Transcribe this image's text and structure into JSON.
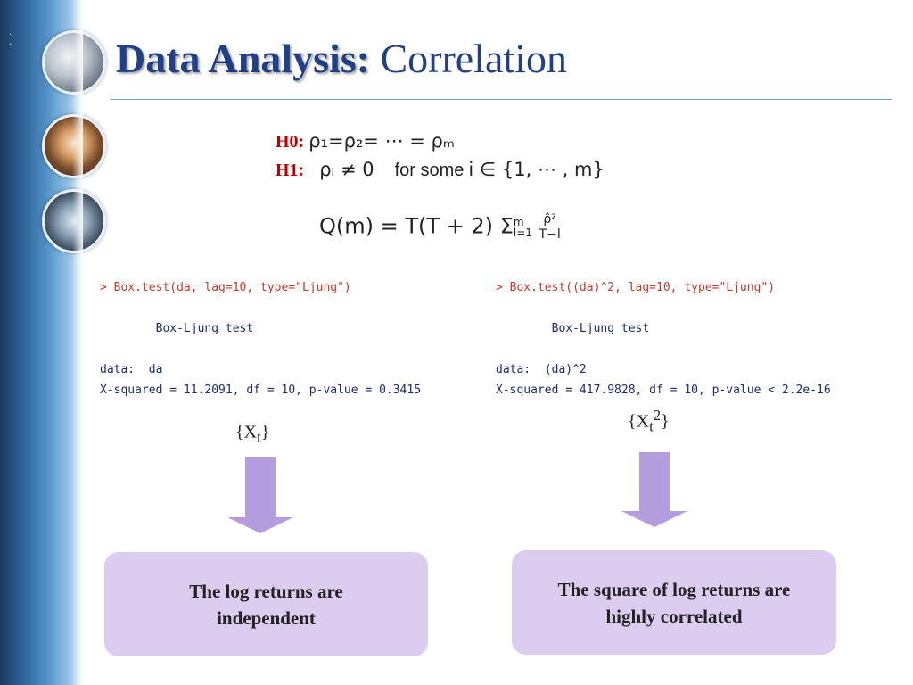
{
  "title": {
    "bold": "Data Analysis:",
    "regular": "Correlation"
  },
  "hypotheses": {
    "h0": {
      "label": "H0:",
      "expr": "ρ₁=ρ₂= ⋯ = ρₘ"
    },
    "h1": {
      "label": "H1:",
      "expr": "ρᵢ ≠ 0",
      "text": "for some",
      "cond": "i ∈ {1, ⋯ , m}"
    }
  },
  "formula": {
    "lhs": "Q(m) = T(T + 2)",
    "sum": "Σ",
    "upper": "m",
    "lower": "l=1",
    "num": "ρ̂²",
    "den": "T−l"
  },
  "outputs": [
    {
      "command": "> Box.test(da, lag=10, type=\"Ljung\")",
      "test": "Box-Ljung test",
      "data": "data:  da",
      "result": "X-squared = 11.2091, df = 10, p-value = 0.3415",
      "series": "X",
      "sub": "t",
      "sup": "",
      "conclusion": "The log returns are independent"
    },
    {
      "command": "> Box.test((da)^2, lag=10, type=\"Ljung\")",
      "test": "Box-Ljung test",
      "data": "data:  (da)^2",
      "result": "X-squared = 417.9828, df = 10, p-value < 2.2e-16",
      "series": "X",
      "sub": "t",
      "sup": "2",
      "conclusion": "The square of log returns are highly correlated"
    }
  ],
  "colors": {
    "title": "#1f3f87",
    "label": "#c00000",
    "arrow": "#b39ddf",
    "box": "#dccdf0"
  }
}
